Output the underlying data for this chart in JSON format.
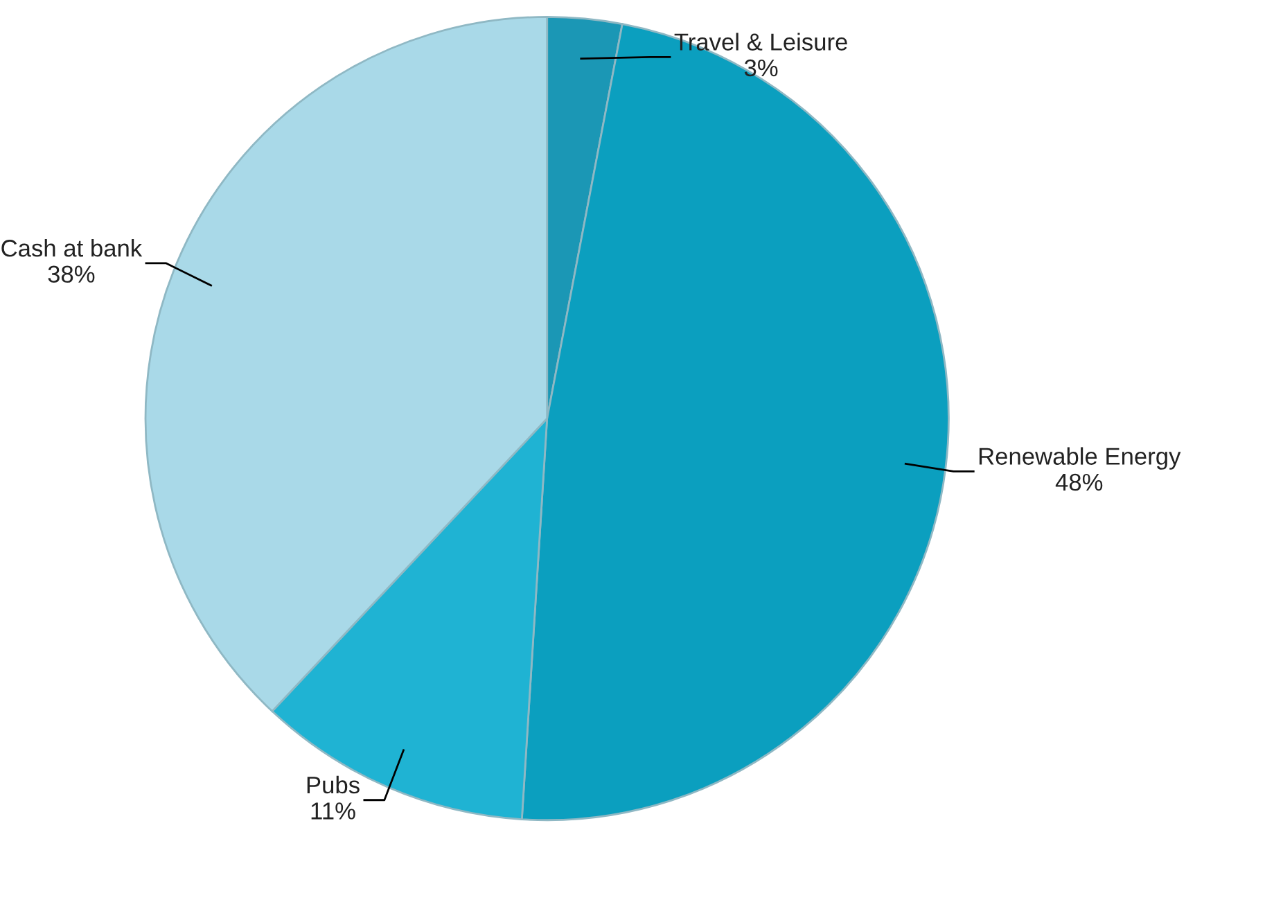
{
  "chart_data": {
    "type": "pie",
    "categories": [
      "Travel & Leisure",
      "Renewable Energy",
      "Pubs",
      "Cash at bank"
    ],
    "values": [
      3,
      48,
      11,
      38
    ],
    "value_labels": [
      "3%",
      "48%",
      "11%",
      "38%"
    ],
    "colors": [
      "#1b97b5",
      "#0b9fbf",
      "#1fb3d3",
      "#a9d9e8"
    ],
    "legend": false
  }
}
